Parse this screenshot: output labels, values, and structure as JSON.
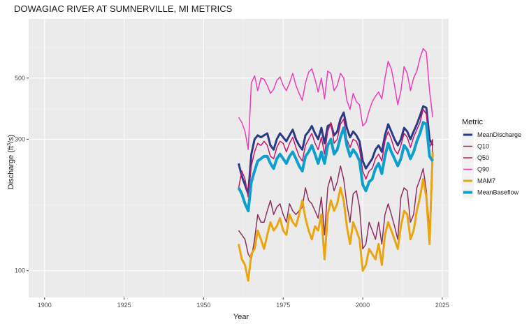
{
  "chart_data": {
    "type": "line",
    "title": "DOWAGIAC RIVER AT SUMNERVILLE, MI  METRICS",
    "xlabel": "Year",
    "ylabel": "Discharge (ft³/s)",
    "ylabel_base": "Discharge (ft",
    "ylabel_sup": "3",
    "ylabel_tail": "/s)",
    "xlim": [
      1895,
      2027
    ],
    "ylim": [
      80,
      820
    ],
    "y_scale": "log",
    "x_ticks": [
      1900,
      1925,
      1950,
      1975,
      2000,
      2025
    ],
    "x_tick_labels": [
      "1900",
      "1925",
      "1950",
      "1975",
      "2000",
      "2025"
    ],
    "y_ticks": [
      100,
      300,
      500
    ],
    "y_tick_labels": [
      "100",
      "300",
      "500"
    ],
    "grid": true,
    "legend_title": "Metric",
    "legend_position": "right",
    "x": [
      1961,
      1962,
      1963,
      1964,
      1965,
      1966,
      1967,
      1968,
      1969,
      1970,
      1971,
      1972,
      1973,
      1974,
      1975,
      1976,
      1977,
      1978,
      1979,
      1980,
      1981,
      1982,
      1983,
      1984,
      1985,
      1986,
      1987,
      1988,
      1989,
      1990,
      1991,
      1992,
      1993,
      1994,
      1995,
      1996,
      1997,
      1998,
      1999,
      2000,
      2001,
      2002,
      2003,
      2004,
      2005,
      2006,
      2007,
      2008,
      2009,
      2010,
      2011,
      2012,
      2013,
      2014,
      2015,
      2016,
      2017,
      2018,
      2019,
      2020,
      2021,
      2022
    ],
    "series": [
      {
        "name": "MeanDischarge",
        "color": "#2b3a87",
        "width": 3,
        "values": [
          245,
          220,
          205,
          190,
          265,
          300,
          310,
          305,
          310,
          315,
          285,
          275,
          300,
          315,
          305,
          295,
          310,
          325,
          300,
          285,
          275,
          310,
          320,
          335,
          315,
          300,
          330,
          290,
          335,
          340,
          310,
          320,
          355,
          375,
          330,
          305,
          320,
          310,
          295,
          250,
          235,
          245,
          255,
          275,
          285,
          270,
          310,
          340,
          320,
          300,
          285,
          300,
          330,
          320,
          300,
          320,
          340,
          365,
          395,
          390,
          300,
          285
        ]
      },
      {
        "name": "Q10",
        "color": "#8e3061",
        "width": 1.5,
        "values": [
          140,
          135,
          130,
          115,
          110,
          130,
          160,
          150,
          150,
          165,
          180,
          160,
          170,
          175,
          160,
          150,
          175,
          165,
          160,
          165,
          170,
          200,
          180,
          175,
          165,
          155,
          185,
          135,
          200,
          220,
          195,
          210,
          240,
          215,
          175,
          150,
          190,
          195,
          170,
          120,
          125,
          150,
          140,
          130,
          150,
          125,
          160,
          175,
          160,
          145,
          130,
          185,
          200,
          195,
          150,
          160,
          200,
          215,
          235,
          195,
          140,
          300
        ]
      },
      {
        "name": "Q50",
        "color": "#c8166a",
        "width": 1.5,
        "values": [
          200,
          230,
          215,
          185,
          240,
          270,
          290,
          285,
          295,
          285,
          260,
          255,
          280,
          295,
          290,
          270,
          290,
          305,
          280,
          260,
          250,
          285,
          300,
          315,
          290,
          275,
          305,
          265,
          320,
          345,
          290,
          300,
          340,
          355,
          300,
          280,
          300,
          295,
          275,
          230,
          215,
          230,
          235,
          255,
          265,
          250,
          295,
          320,
          300,
          275,
          265,
          285,
          315,
          305,
          280,
          305,
          325,
          345,
          385,
          370,
          280,
          300
        ]
      },
      {
        "name": "Q90",
        "color": "#ee3dba",
        "width": 1.5,
        "values": [
          360,
          345,
          320,
          275,
          480,
          510,
          450,
          500,
          495,
          470,
          440,
          455,
          490,
          505,
          470,
          450,
          480,
          520,
          470,
          440,
          415,
          480,
          525,
          540,
          495,
          445,
          500,
          420,
          530,
          520,
          450,
          470,
          520,
          500,
          415,
          385,
          440,
          410,
          400,
          335,
          345,
          380,
          410,
          430,
          445,
          420,
          500,
          575,
          540,
          470,
          400,
          450,
          550,
          520,
          450,
          500,
          530,
          590,
          640,
          620,
          450,
          360
        ]
      },
      {
        "name": "MAM7",
        "color": "#eaa611",
        "width": 3,
        "values": [
          125,
          110,
          105,
          92,
          115,
          120,
          140,
          130,
          120,
          135,
          150,
          140,
          145,
          155,
          140,
          135,
          160,
          150,
          145,
          160,
          180,
          155,
          140,
          130,
          145,
          140,
          160,
          110,
          160,
          180,
          165,
          175,
          200,
          180,
          145,
          125,
          150,
          140,
          130,
          100,
          105,
          120,
          115,
          110,
          125,
          105,
          135,
          150,
          140,
          130,
          120,
          145,
          165,
          160,
          130,
          140,
          165,
          185,
          215,
          185,
          125,
          270
        ]
      },
      {
        "name": "MeanBaseflow",
        "color": "#0f9fcc",
        "width": 4,
        "values": [
          200,
          190,
          175,
          165,
          210,
          230,
          250,
          255,
          260,
          260,
          245,
          235,
          255,
          265,
          255,
          245,
          260,
          270,
          255,
          240,
          230,
          260,
          270,
          285,
          265,
          245,
          270,
          245,
          285,
          300,
          265,
          275,
          305,
          330,
          285,
          260,
          275,
          265,
          250,
          205,
          195,
          210,
          215,
          235,
          245,
          225,
          260,
          290,
          270,
          255,
          240,
          255,
          285,
          275,
          255,
          270,
          295,
          315,
          345,
          340,
          260,
          250
        ]
      }
    ]
  }
}
